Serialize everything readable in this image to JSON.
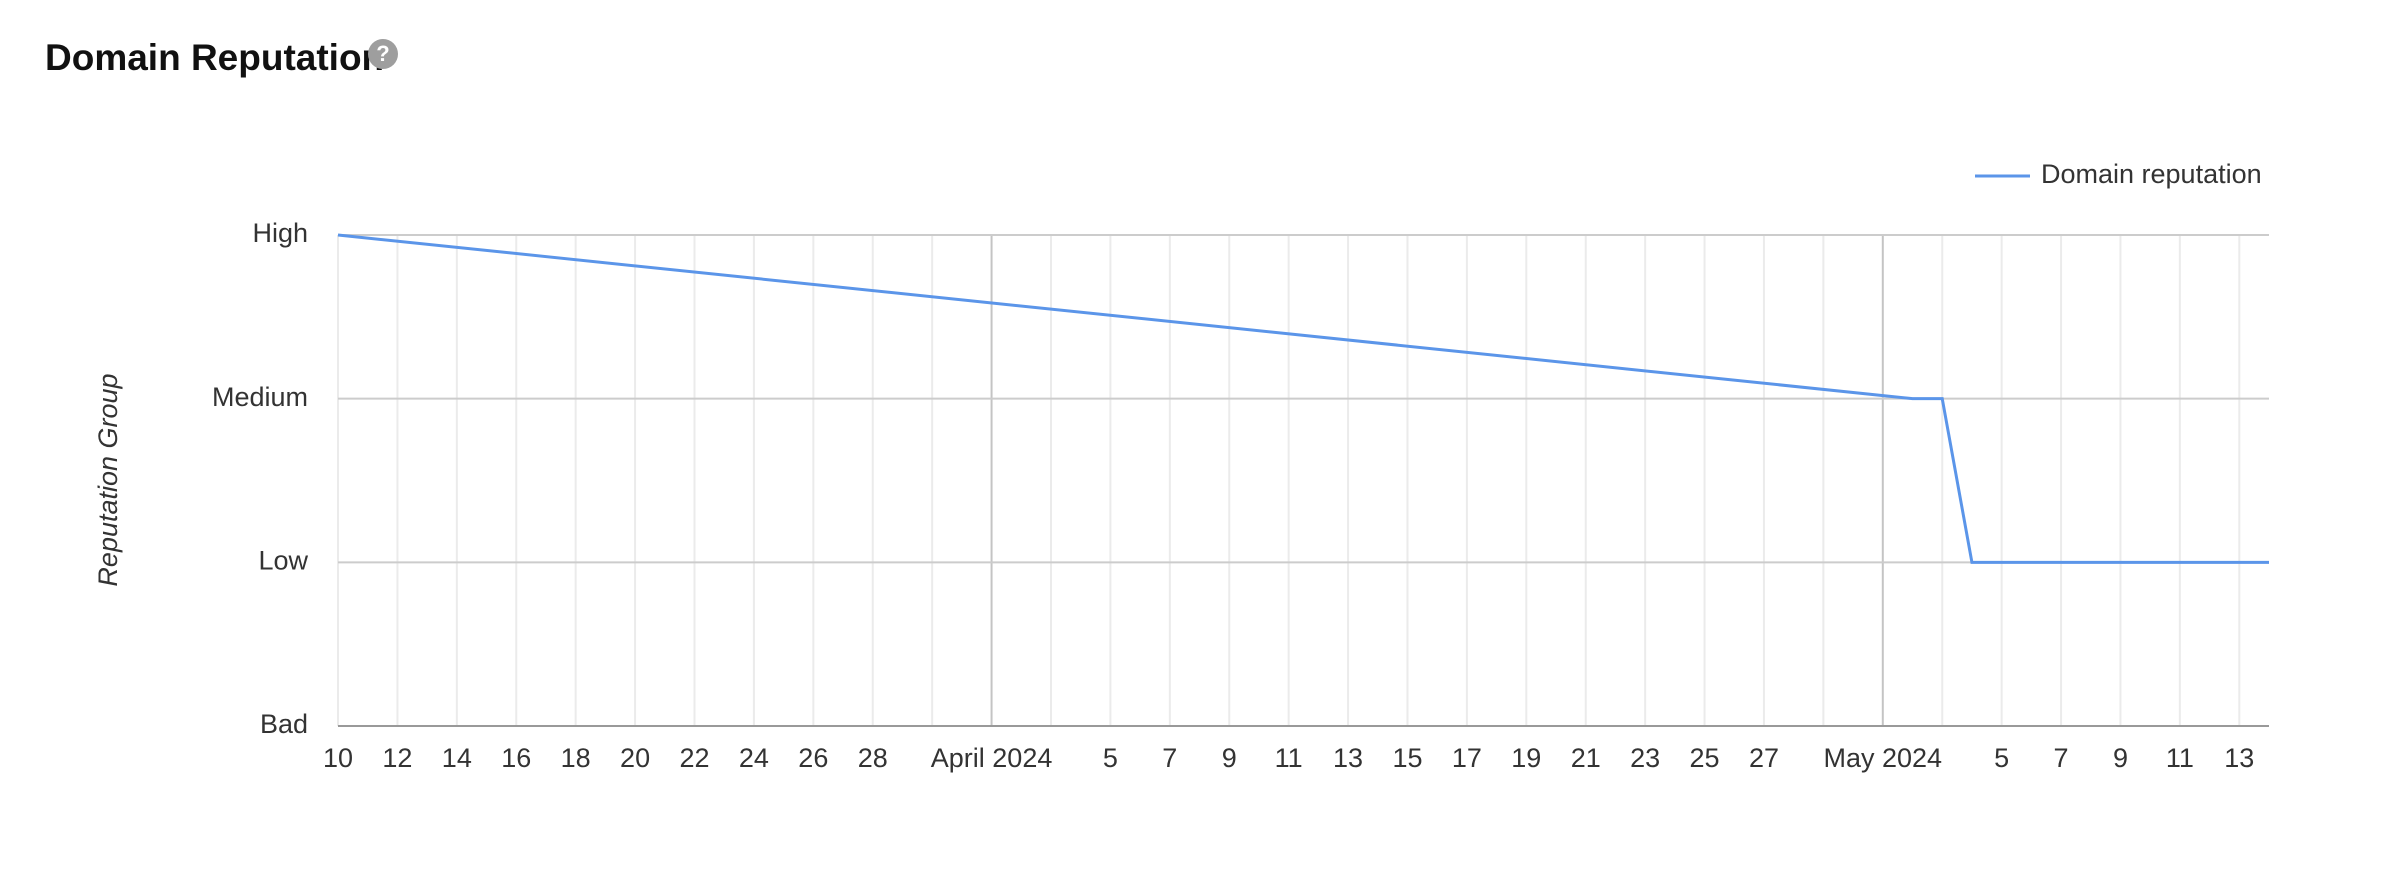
{
  "chart_data": {
    "type": "line",
    "title": "Domain Reputation",
    "y_axis_label": "Reputation Group",
    "x": [
      "2024-03-10",
      "2024-05-02",
      "2024-05-03",
      "2024-05-04",
      "2024-05-05",
      "2024-05-06",
      "2024-05-07",
      "2024-05-08",
      "2024-05-09",
      "2024-05-10",
      "2024-05-11",
      "2024-05-12",
      "2024-05-13",
      "2024-05-14"
    ],
    "series": [
      {
        "name": "Domain reputation",
        "color": "#5b95e9",
        "values": [
          3,
          2,
          2,
          1,
          1,
          1,
          1,
          1,
          1,
          1,
          1,
          1,
          1,
          1
        ]
      }
    ],
    "xlim": [
      "2024-03-10",
      "2024-05-14"
    ],
    "xticks": [
      {
        "value": "2024-03-10",
        "label": "10"
      },
      {
        "value": "2024-03-12",
        "label": "12"
      },
      {
        "value": "2024-03-14",
        "label": "14"
      },
      {
        "value": "2024-03-16",
        "label": "16"
      },
      {
        "value": "2024-03-18",
        "label": "18"
      },
      {
        "value": "2024-03-20",
        "label": "20"
      },
      {
        "value": "2024-03-22",
        "label": "22"
      },
      {
        "value": "2024-03-24",
        "label": "24"
      },
      {
        "value": "2024-03-26",
        "label": "26"
      },
      {
        "value": "2024-03-28",
        "label": "28"
      },
      {
        "value": "2024-03-30",
        "label": null
      },
      {
        "value": "2024-04-01",
        "label": "April 2024"
      },
      {
        "value": "2024-04-03",
        "label": null
      },
      {
        "value": "2024-04-05",
        "label": "5"
      },
      {
        "value": "2024-04-07",
        "label": "7"
      },
      {
        "value": "2024-04-09",
        "label": "9"
      },
      {
        "value": "2024-04-11",
        "label": "11"
      },
      {
        "value": "2024-04-13",
        "label": "13"
      },
      {
        "value": "2024-04-15",
        "label": "15"
      },
      {
        "value": "2024-04-17",
        "label": "17"
      },
      {
        "value": "2024-04-19",
        "label": "19"
      },
      {
        "value": "2024-04-21",
        "label": "21"
      },
      {
        "value": "2024-04-23",
        "label": "23"
      },
      {
        "value": "2024-04-25",
        "label": "25"
      },
      {
        "value": "2024-04-27",
        "label": "27"
      },
      {
        "value": "2024-04-29",
        "label": null
      },
      {
        "value": "2024-05-01",
        "label": "May 2024"
      },
      {
        "value": "2024-05-03",
        "label": null
      },
      {
        "value": "2024-05-05",
        "label": "5"
      },
      {
        "value": "2024-05-07",
        "label": "7"
      },
      {
        "value": "2024-05-09",
        "label": "9"
      },
      {
        "value": "2024-05-11",
        "label": "11"
      },
      {
        "value": "2024-05-13",
        "label": "13"
      }
    ],
    "ylim": [
      0,
      3
    ],
    "yticks": [
      {
        "value": 0,
        "label": "Bad"
      },
      {
        "value": 1,
        "label": "Low"
      },
      {
        "value": 2,
        "label": "Medium"
      },
      {
        "value": 3,
        "label": "High"
      }
    ],
    "grid": true,
    "legend": "top-right"
  }
}
